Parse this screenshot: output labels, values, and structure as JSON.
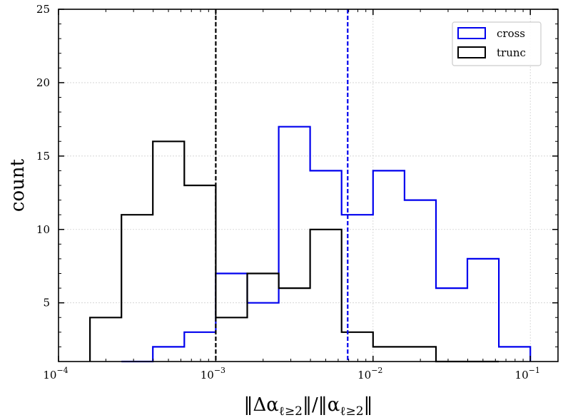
{
  "chart_data": {
    "type": "histogram",
    "xscale": "log",
    "xlim": [
      0.0001,
      0.15
    ],
    "ylim": [
      1,
      25
    ],
    "xlabel": "‖Δα_{ℓ≥2}‖/‖α_{ℓ≥2}‖",
    "ylabel": "count",
    "grid": true,
    "legend_position": "top-right",
    "x_tick_labels": [
      {
        "value": 0.0001,
        "base": "10",
        "exp": "−4"
      },
      {
        "value": 0.001,
        "base": "10",
        "exp": "−3"
      },
      {
        "value": 0.01,
        "base": "10",
        "exp": "−2"
      },
      {
        "value": 0.1,
        "base": "10",
        "exp": "−1"
      }
    ],
    "y_ticks": [
      5,
      10,
      15,
      20,
      25
    ],
    "bin_edges": [
      0.0001,
      0.000158,
      0.000251,
      0.000398,
      0.000631,
      0.001,
      0.00158,
      0.00251,
      0.00398,
      0.00631,
      0.01,
      0.0158,
      0.0251,
      0.0398,
      0.0631,
      0.1,
      0.158
    ],
    "series": [
      {
        "name": "cross",
        "color": "#0000ee",
        "edges": [
          0.0002512,
          0.0003981,
          0.000631,
          0.001,
          0.001585,
          0.002512,
          0.003981,
          0.00631,
          0.01,
          0.01585,
          0.02512,
          0.03981,
          0.0631,
          0.1
        ],
        "counts": [
          1,
          2,
          3,
          7,
          5,
          17,
          14,
          11,
          14,
          12,
          6,
          8,
          2
        ],
        "median": 0.0069
      },
      {
        "name": "trunc",
        "color": "#000000",
        "edges": [
          0.0001585,
          0.0002512,
          0.0003981,
          0.000631,
          0.001,
          0.001585,
          0.002512,
          0.003981,
          0.00631,
          0.01,
          0.01585,
          0.02512,
          0.0631
        ],
        "counts": [
          4,
          11,
          16,
          13,
          4,
          7,
          6,
          10,
          3,
          2,
          2,
          1
        ],
        "median": 0.001
      }
    ]
  }
}
